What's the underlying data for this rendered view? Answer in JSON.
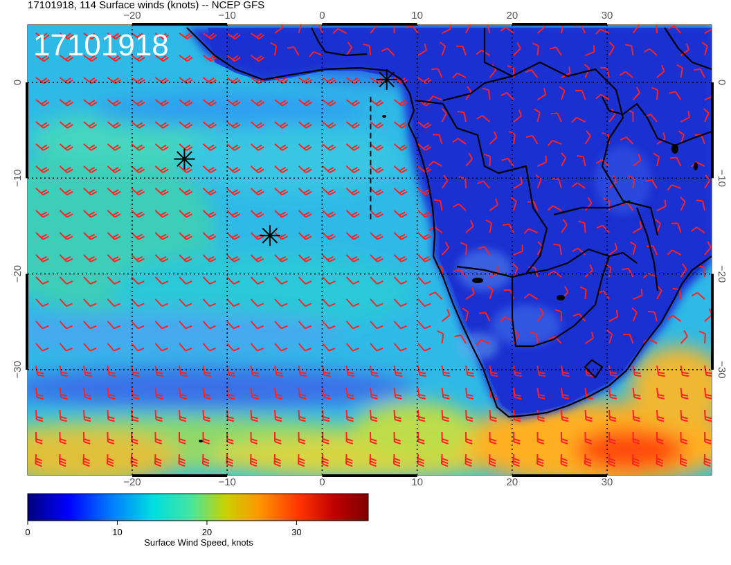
{
  "header": {
    "title": "17101918, 114 Surface winds (knots) -- NCEP GFS",
    "stamp": "17101918"
  },
  "map": {
    "lon_range": [
      -31,
      41
    ],
    "lat_range": [
      6,
      -41
    ],
    "lon_ticks": [
      "-20",
      "-10",
      "0",
      "10",
      "20",
      "30"
    ],
    "lat_ticks": [
      "0",
      "-10",
      "-20",
      "-30"
    ],
    "lon_tick_values": [
      -20,
      -10,
      0,
      10,
      20,
      30
    ],
    "lat_tick_values": [
      0,
      -10,
      -20,
      -30
    ],
    "barb_color": "#ff2020",
    "coast_color": "#000000",
    "markers": [
      {
        "lon": -14.5,
        "lat": -8.0
      },
      {
        "lon": -5.5,
        "lat": -16.0
      },
      {
        "lon": 6.8,
        "lat": 0.3
      }
    ],
    "forecast_track": [
      {
        "lon": 5.1,
        "lat": -1.5
      },
      {
        "lon": 5.1,
        "lat": -14.5
      }
    ]
  },
  "colorbar": {
    "label": "Surface Wind Speed, knots",
    "ticks": [
      "0",
      "10",
      "20",
      "30"
    ],
    "tick_values": [
      0,
      10,
      20,
      30
    ],
    "max": 38,
    "colors": [
      "#00007f",
      "#0000ff",
      "#0080ff",
      "#00dfdf",
      "#46e6a0",
      "#c8d200",
      "#ff9600",
      "#ff3200",
      "#bf0000",
      "#7f0000"
    ]
  }
}
